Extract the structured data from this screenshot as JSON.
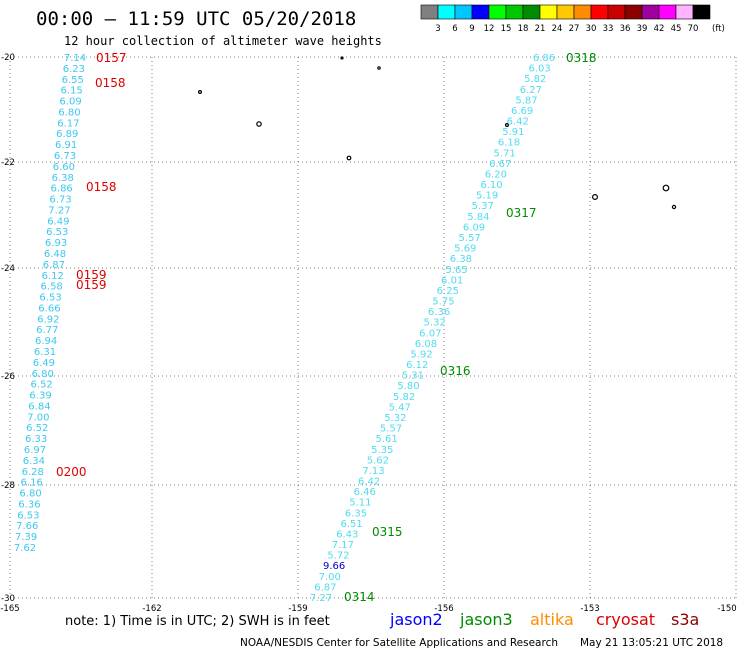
{
  "header": {
    "title": "00:00 – 11:59 UTC 05/20/2018",
    "subtitle": "12 hour collection of altimeter wave heights"
  },
  "legend": {
    "labels": [
      "3",
      "6",
      "9",
      "12",
      "15",
      "18",
      "21",
      "24",
      "27",
      "30",
      "33",
      "36",
      "39",
      "42",
      "45",
      "70"
    ],
    "unit": "(ft)",
    "colors": [
      "#808080",
      "#00ffff",
      "#00c8ff",
      "#0000ff",
      "#00ff00",
      "#00c800",
      "#008c00",
      "#ffff00",
      "#ffc800",
      "#ff8c00",
      "#ff0000",
      "#c80000",
      "#8c0000",
      "#a000a0",
      "#ff00ff",
      "#ffb4ff",
      "#000000"
    ]
  },
  "axes": {
    "lat_labels": [
      "-20",
      "-22",
      "-24",
      "-26",
      "-28",
      "-30"
    ],
    "lon_labels": [
      "-165",
      "-162",
      "-159",
      "-156",
      "-153",
      "-150"
    ]
  },
  "tracks": {
    "west": {
      "color": "#3cc8f0",
      "values": [
        "7.14",
        "6.23",
        "6.55",
        "6.15",
        "6.09",
        "6.80",
        "6.17",
        "6.89",
        "6.91",
        "6.73",
        "6.60",
        "6.38",
        "6.86",
        "6.73",
        "7.27",
        "6.49",
        "6.53",
        "6.93",
        "6.48",
        "6.87",
        "6.12",
        "6.58",
        "6.53",
        "6.66",
        "6.92",
        "6.77",
        "6.94",
        "6.31",
        "6.49",
        "6.80",
        "6.52",
        "6.39",
        "6.84",
        "7.00",
        "6.52",
        "6.33",
        "6.97",
        "6.34",
        "6.28",
        "6.16",
        "6.80",
        "6.36",
        "6.53",
        "7.66",
        "7.39",
        "7.62"
      ]
    },
    "east": {
      "color": "#50dcf0",
      "values": [
        "6.86",
        "6.03",
        "5.82",
        "6.27",
        "5.87",
        "6.69",
        "6.42",
        "5.91",
        "6.18",
        "5.71",
        "6.67",
        "6.20",
        "6.10",
        "5.19",
        "5.37",
        "5.84",
        "6.09",
        "5.57",
        "5.69",
        "6.38",
        "5.65",
        "6.01",
        "6.25",
        "5.75",
        "6.36",
        "5.32",
        "6.07",
        "6.08",
        "5.92",
        "6.12",
        "5.31",
        "5.80",
        "5.82",
        "5.47",
        "5.32",
        "5.57",
        "5.61",
        "5.35",
        "5.62",
        "7.13",
        "6.42",
        "6.46",
        "5.11",
        "6.35",
        "6.51",
        "6.43",
        "7.17",
        "5.72",
        "9.66",
        "7.00",
        "6.87",
        "7.27"
      ]
    },
    "highlight_value": "9.66"
  },
  "time_labels": {
    "west": [
      "0157",
      "0158",
      "0158",
      "0159",
      "0159",
      "0200"
    ],
    "east": [
      "0318",
      "0317",
      "0316",
      "0315",
      "0314"
    ]
  },
  "footer": {
    "note": "note: 1) Time is in UTC; 2) SWH is in feet",
    "missions": [
      {
        "name": "jason2",
        "color": "#0000ff"
      },
      {
        "name": "jason3",
        "color": "#008c00"
      },
      {
        "name": "altika",
        "color": "#ff8c00"
      },
      {
        "name": "cryosat",
        "color": "#dc0000"
      },
      {
        "name": "s3a",
        "color": "#8c0000"
      }
    ],
    "credit": "NOAA/NESDIS Center for Satellite Applications and Research",
    "timestamp": "May 21 13:05:21 UTC 2018"
  }
}
